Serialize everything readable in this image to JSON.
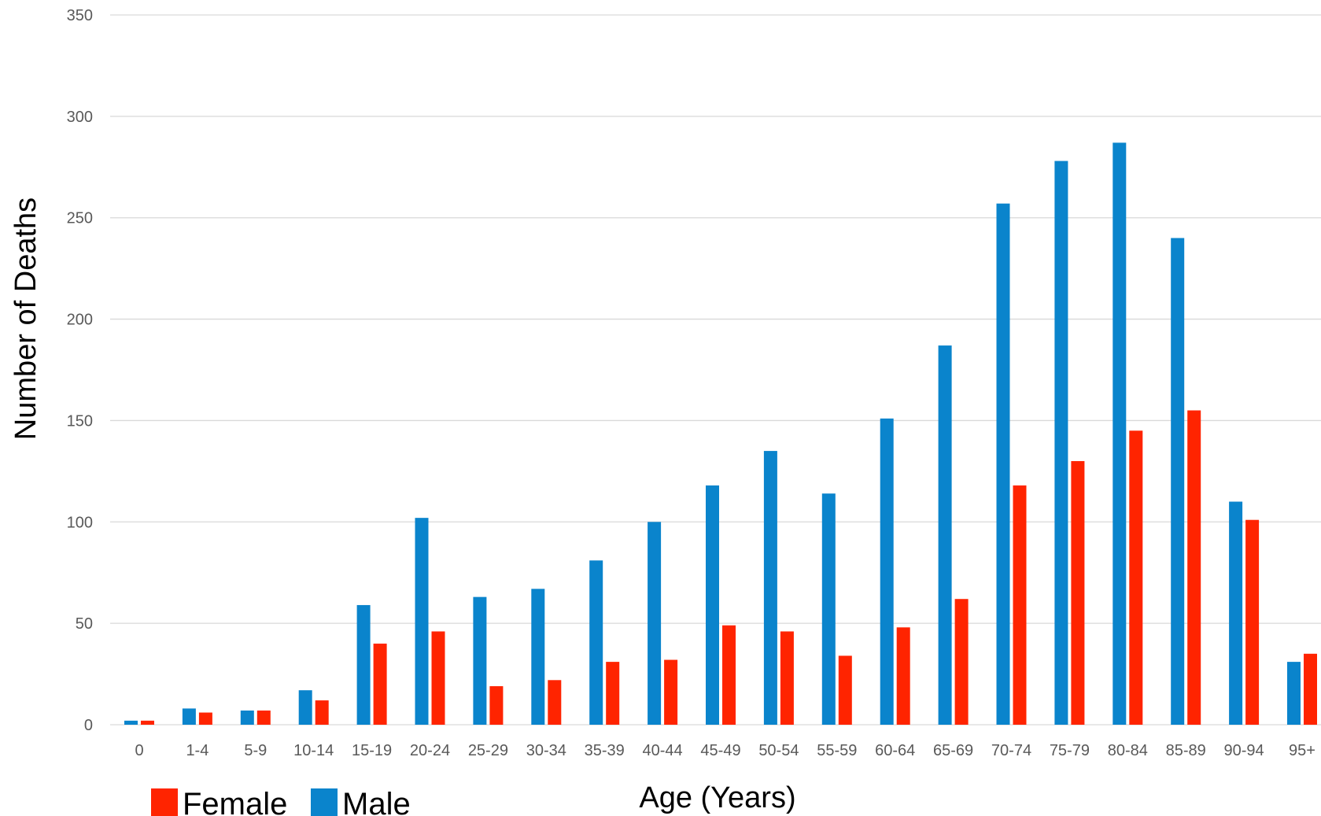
{
  "chart_data": {
    "type": "bar",
    "title": "",
    "xlabel": "Age (Years)",
    "ylabel": "Number of Deaths",
    "ylim": [
      0,
      350
    ],
    "yticks": [
      0,
      50,
      100,
      150,
      200,
      250,
      300,
      350
    ],
    "grid": true,
    "legend_position": "bottom-left",
    "categories": [
      "0",
      "1-4",
      "5-9",
      "10-14",
      "15-19",
      "20-24",
      "25-29",
      "30-34",
      "35-39",
      "40-44",
      "45-49",
      "50-54",
      "55-59",
      "60-64",
      "65-69",
      "70-74",
      "75-79",
      "80-84",
      "85-89",
      "90-94",
      "95+"
    ],
    "series": [
      {
        "name": "Male",
        "color": "#0a84cc",
        "values": [
          2,
          8,
          7,
          17,
          59,
          102,
          63,
          67,
          81,
          100,
          118,
          135,
          114,
          151,
          187,
          257,
          278,
          287,
          240,
          110,
          31
        ]
      },
      {
        "name": "Female",
        "color": "#ff2400",
        "values": [
          2,
          6,
          7,
          12,
          40,
          46,
          19,
          22,
          31,
          32,
          49,
          46,
          34,
          48,
          62,
          118,
          130,
          145,
          155,
          101,
          35
        ]
      }
    ],
    "legend": [
      {
        "name": "Female",
        "color": "#ff2400"
      },
      {
        "name": "Male",
        "color": "#0a84cc"
      }
    ]
  }
}
